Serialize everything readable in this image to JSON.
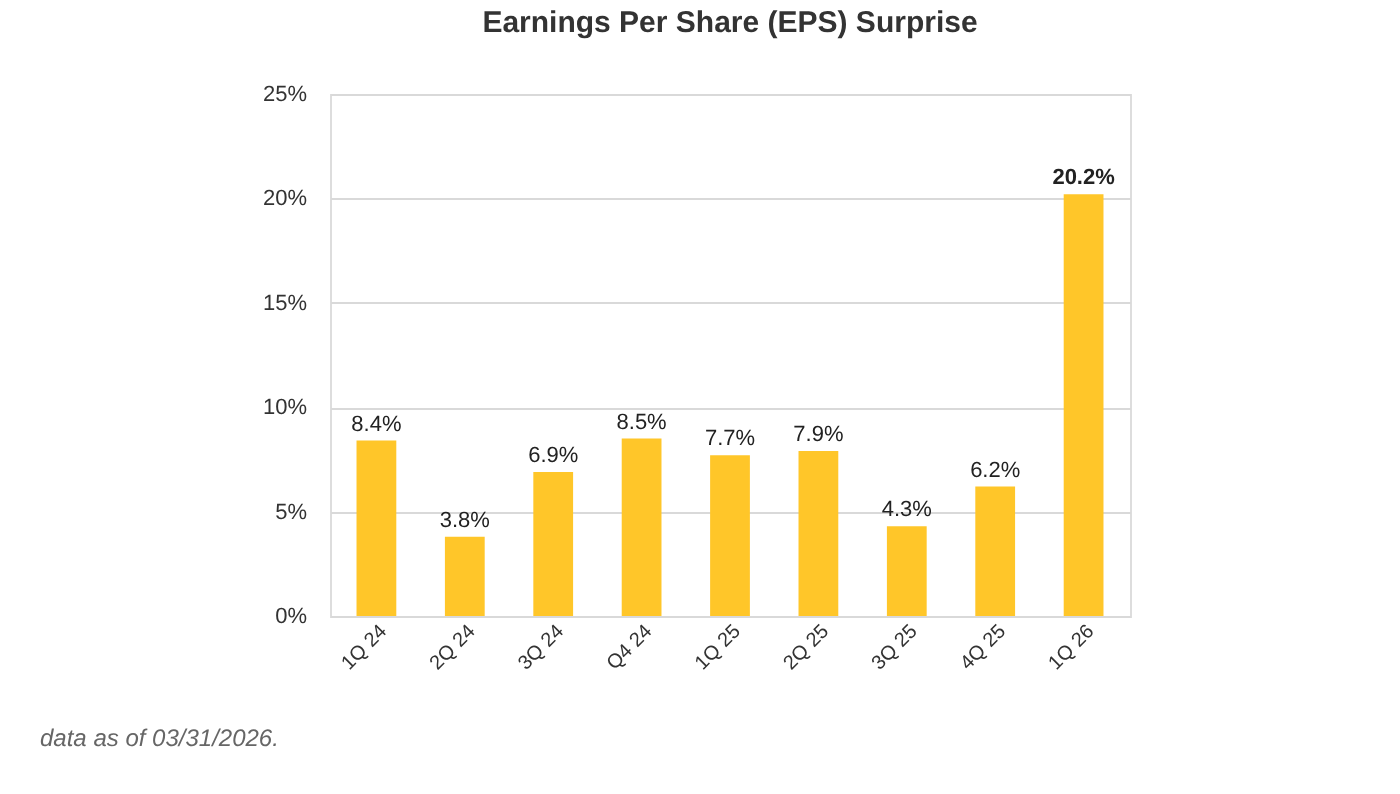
{
  "chart_data": {
    "type": "bar",
    "title": "Earnings Per Share (EPS) Surprise",
    "categories": [
      "1Q 24",
      "2Q 24",
      "3Q 24",
      "Q4 24",
      "1Q 25",
      "2Q 25",
      "3Q 25",
      "4Q 25",
      "1Q 26"
    ],
    "values": [
      8.4,
      3.8,
      6.9,
      8.5,
      7.7,
      7.9,
      4.3,
      6.2,
      20.2
    ],
    "value_labels": [
      "8.4%",
      "3.8%",
      "6.9%",
      "8.5%",
      "7.7%",
      "7.9%",
      "4.3%",
      "6.2%",
      "20.2%"
    ],
    "color": "#ffc629",
    "ylim": [
      0,
      25
    ],
    "yticks": [
      {
        "value": 0,
        "label": "0%"
      },
      {
        "value": 5,
        "label": "5%"
      },
      {
        "value": 10,
        "label": "10%"
      },
      {
        "value": 15,
        "label": "15%"
      },
      {
        "value": 20,
        "label": "20%"
      },
      {
        "value": 25,
        "label": "25%"
      }
    ],
    "grid": "y",
    "annotations": [
      "data as of 03/31/2026."
    ]
  }
}
